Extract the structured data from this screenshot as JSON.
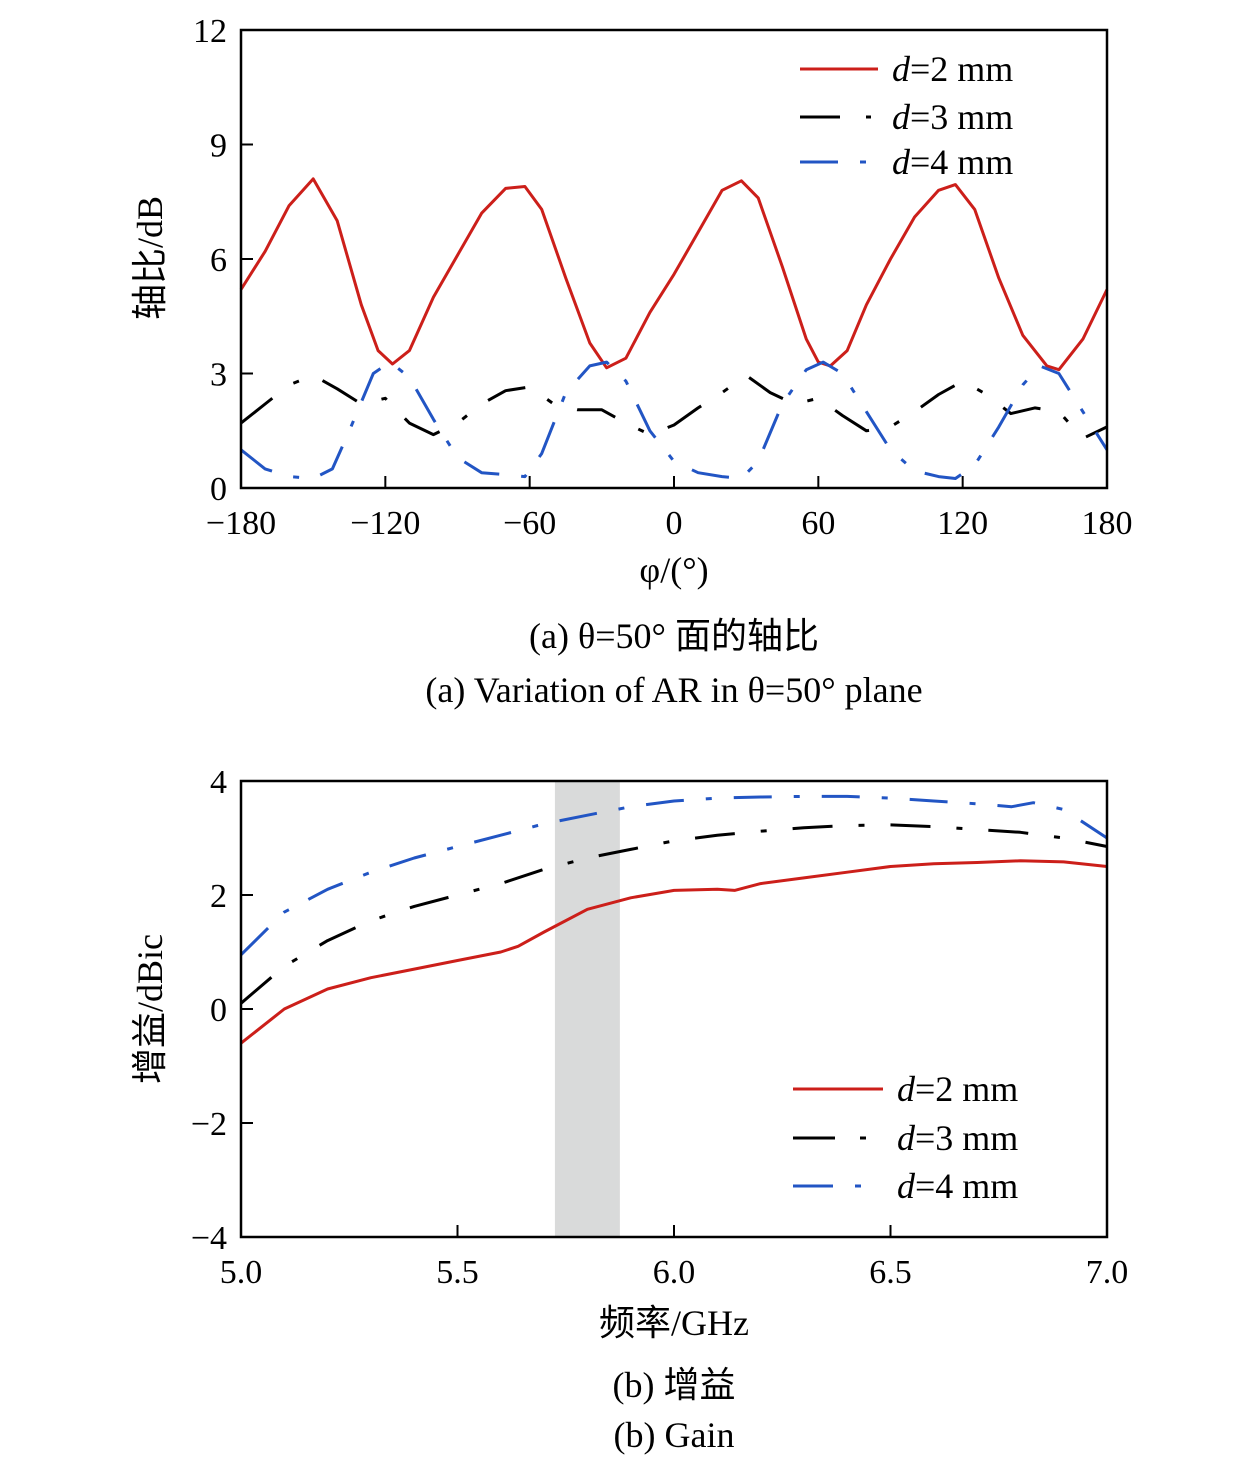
{
  "chart_data": [
    {
      "type": "line",
      "caption_cn": "(a) θ=50° 面的轴比",
      "caption_en": "(a) Variation of AR in θ=50° plane",
      "xlabel": "φ/(°)",
      "ylabel": "轴比/dB",
      "xlim": [
        -180,
        180
      ],
      "ylim": [
        0,
        12
      ],
      "xticks": [
        -180,
        -120,
        -60,
        0,
        60,
        120,
        180
      ],
      "yticks": [
        0,
        3,
        6,
        9,
        12
      ],
      "xtick_labels": [
        "−180",
        "−120",
        "−60",
        "0",
        "60",
        "120",
        "180"
      ],
      "ytick_labels": [
        "0",
        "3",
        "6",
        "9",
        "12"
      ],
      "legend_position": "top-right",
      "grid": false,
      "series": [
        {
          "name": "d=2 mm",
          "name_var": "d",
          "name_rest": "=2 mm",
          "color": "#cc1f1a",
          "dash": "solid",
          "x": [
            -180,
            -170,
            -160,
            -150,
            -140,
            -130,
            -123,
            -117,
            -110,
            -100,
            -90,
            -80,
            -70,
            -62,
            -55,
            -45,
            -35,
            -28,
            -20,
            -10,
            0,
            10,
            20,
            28,
            35,
            45,
            55,
            60,
            65,
            72,
            80,
            90,
            100,
            110,
            117,
            125,
            135,
            145,
            155,
            160,
            170,
            180
          ],
          "y": [
            5.2,
            6.2,
            7.4,
            8.1,
            7.0,
            4.8,
            3.6,
            3.25,
            3.6,
            5.0,
            6.1,
            7.2,
            7.85,
            7.9,
            7.3,
            5.5,
            3.8,
            3.15,
            3.4,
            4.6,
            5.6,
            6.7,
            7.8,
            8.05,
            7.6,
            5.8,
            3.9,
            3.3,
            3.2,
            3.6,
            4.8,
            6.0,
            7.1,
            7.8,
            7.95,
            7.3,
            5.5,
            4.0,
            3.2,
            3.1,
            3.9,
            5.2
          ]
        },
        {
          "name": "d=3 mm",
          "name_var": "d",
          "name_rest": "=3 mm",
          "color": "#000000",
          "dash": "long-short",
          "x": [
            -180,
            -170,
            -160,
            -150,
            -140,
            -130,
            -120,
            -110,
            -100,
            -90,
            -80,
            -70,
            -60,
            -50,
            -40,
            -30,
            -20,
            -10,
            0,
            10,
            20,
            30,
            40,
            50,
            60,
            70,
            80,
            90,
            100,
            110,
            120,
            130,
            140,
            150,
            160,
            170,
            180
          ],
          "y": [
            1.7,
            2.2,
            2.7,
            2.95,
            2.6,
            2.2,
            2.35,
            1.7,
            1.4,
            1.7,
            2.2,
            2.55,
            2.65,
            2.2,
            2.05,
            2.05,
            1.7,
            1.4,
            1.65,
            2.1,
            2.5,
            2.95,
            2.5,
            2.2,
            2.35,
            1.9,
            1.5,
            1.6,
            2.0,
            2.45,
            2.8,
            2.45,
            1.95,
            2.1,
            2.0,
            1.3,
            1.6
          ]
        },
        {
          "name": "d=4 mm",
          "name_var": "d",
          "name_rest": "=4 mm",
          "color": "#2255c4",
          "dash": "dash-dot",
          "x": [
            -180,
            -170,
            -160,
            -150,
            -142,
            -135,
            -125,
            -118,
            -110,
            -100,
            -90,
            -80,
            -70,
            -62,
            -55,
            -45,
            -35,
            -28,
            -20,
            -10,
            0,
            10,
            20,
            28,
            35,
            45,
            55,
            62,
            70,
            80,
            90,
            100,
            110,
            117,
            125,
            135,
            145,
            152,
            160,
            170,
            180
          ],
          "y": [
            1.0,
            0.5,
            0.3,
            0.25,
            0.5,
            1.5,
            3.0,
            3.3,
            2.9,
            1.8,
            0.8,
            0.4,
            0.35,
            0.3,
            0.9,
            2.5,
            3.2,
            3.3,
            2.8,
            1.5,
            0.7,
            0.4,
            0.3,
            0.25,
            0.7,
            2.2,
            3.1,
            3.3,
            3.0,
            2.0,
            1.0,
            0.45,
            0.3,
            0.25,
            0.6,
            1.6,
            2.7,
            3.2,
            3.0,
            2.0,
            1.0
          ]
        }
      ]
    },
    {
      "type": "line",
      "caption_cn": "(b) 增益",
      "caption_en": "(b) Gain",
      "xlabel": "频率/GHz",
      "ylabel": "增益/dBic",
      "xlim": [
        5.0,
        7.0
      ],
      "ylim": [
        -4,
        4
      ],
      "xticks": [
        5.0,
        5.5,
        6.0,
        6.5,
        7.0
      ],
      "yticks": [
        -4,
        -2,
        0,
        2,
        4
      ],
      "xtick_labels": [
        "5.0",
        "5.5",
        "6.0",
        "6.5",
        "7.0"
      ],
      "ytick_labels": [
        "−4",
        "−2",
        "0",
        "2",
        "4"
      ],
      "highlight_band": {
        "x": [
          5.725,
          5.875
        ],
        "color": "#d9dada"
      },
      "legend_position": "bottom-right",
      "grid": false,
      "series": [
        {
          "name": "d=2 mm",
          "name_var": "d",
          "name_rest": "=2 mm",
          "color": "#cc1f1a",
          "dash": "solid",
          "x": [
            5.0,
            5.1,
            5.2,
            5.3,
            5.4,
            5.5,
            5.6,
            5.64,
            5.7,
            5.8,
            5.9,
            6.0,
            6.1,
            6.14,
            6.2,
            6.3,
            6.4,
            6.5,
            6.6,
            6.7,
            6.8,
            6.9,
            7.0
          ],
          "y": [
            -0.6,
            0.0,
            0.35,
            0.55,
            0.7,
            0.85,
            1.0,
            1.1,
            1.35,
            1.75,
            1.95,
            2.08,
            2.1,
            2.08,
            2.2,
            2.3,
            2.4,
            2.5,
            2.55,
            2.57,
            2.6,
            2.58,
            2.5
          ]
        },
        {
          "name": "d=3 mm",
          "name_var": "d",
          "name_rest": "=3 mm",
          "color": "#000000",
          "dash": "long-short",
          "x": [
            5.0,
            5.1,
            5.2,
            5.3,
            5.4,
            5.5,
            5.6,
            5.7,
            5.8,
            5.9,
            6.0,
            6.1,
            6.2,
            6.3,
            6.4,
            6.5,
            6.6,
            6.7,
            6.8,
            6.9,
            7.0
          ],
          "y": [
            0.1,
            0.75,
            1.2,
            1.55,
            1.8,
            2.0,
            2.2,
            2.45,
            2.65,
            2.8,
            2.95,
            3.05,
            3.12,
            3.18,
            3.22,
            3.23,
            3.2,
            3.15,
            3.1,
            3.0,
            2.85
          ]
        },
        {
          "name": "d=4 mm",
          "name_var": "d",
          "name_rest": "=4 mm",
          "color": "#2255c4",
          "dash": "dash-dot",
          "x": [
            5.0,
            5.1,
            5.2,
            5.3,
            5.4,
            5.5,
            5.6,
            5.7,
            5.8,
            5.9,
            6.0,
            6.1,
            6.2,
            6.3,
            6.4,
            6.5,
            6.6,
            6.7,
            6.78,
            6.83,
            6.9,
            7.0
          ],
          "y": [
            0.95,
            1.7,
            2.1,
            2.4,
            2.65,
            2.85,
            3.05,
            3.25,
            3.4,
            3.55,
            3.65,
            3.7,
            3.72,
            3.73,
            3.73,
            3.7,
            3.65,
            3.6,
            3.55,
            3.62,
            3.5,
            3.0
          ]
        }
      ]
    }
  ]
}
